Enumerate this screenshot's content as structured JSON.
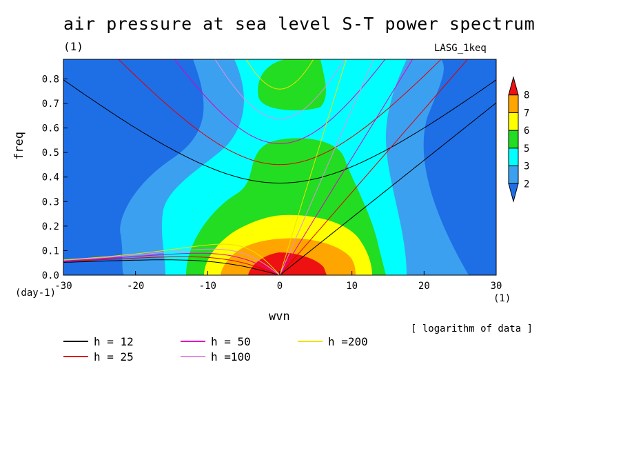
{
  "chart_data": {
    "type": "heatmap",
    "title": "air pressure at sea level S-T power spectrum",
    "units_label": "(1)",
    "model_label": "LASG_1keq",
    "xlabel": "wvn",
    "ylabel": "freq",
    "x_unit": "(1)",
    "y_unit": "(day-1)",
    "note": "[ logarithm of data ]",
    "xlim": [
      -30,
      30
    ],
    "ylim": [
      0,
      0.88
    ],
    "x_ticks": [
      "-30",
      "-20",
      "-10",
      "0",
      "10",
      "20",
      "30"
    ],
    "y_ticks": [
      "0.0",
      "0.1",
      "0.2",
      "0.3",
      "0.4",
      "0.5",
      "0.6",
      "0.7",
      "0.8"
    ],
    "colorbar": {
      "levels": [
        "2",
        "3",
        "5",
        "6",
        "7",
        "8"
      ],
      "colors": [
        "#1e6ee6",
        "#3ca0f0",
        "#00ffff",
        "#22dd22",
        "#ffff00",
        "#ffa500",
        "#ee1111"
      ]
    },
    "contour_fill": {
      "background": "#1e6ee6",
      "regions": [
        {
          "level": ">2",
          "color": "#3ca0f0"
        },
        {
          "level": ">3",
          "color": "#00ffff"
        },
        {
          "level": ">5",
          "color": "#22dd22"
        },
        {
          "level": ">6",
          "color": "#ffff00"
        },
        {
          "level": ">7",
          "color": "#ffa500"
        },
        {
          "level": ">8",
          "color": "#ee1111"
        }
      ]
    },
    "dispersion_curves": [
      {
        "name": "h = 12",
        "h": 12,
        "color": "#000000"
      },
      {
        "name": "h = 25",
        "h": 25,
        "color": "#e00000"
      },
      {
        "name": "h = 50",
        "h": 50,
        "color": "#e000c0"
      },
      {
        "name": "h =100",
        "h": 100,
        "color": "#e090e0"
      },
      {
        "name": "h =200",
        "h": 200,
        "color": "#f0e000"
      }
    ]
  }
}
